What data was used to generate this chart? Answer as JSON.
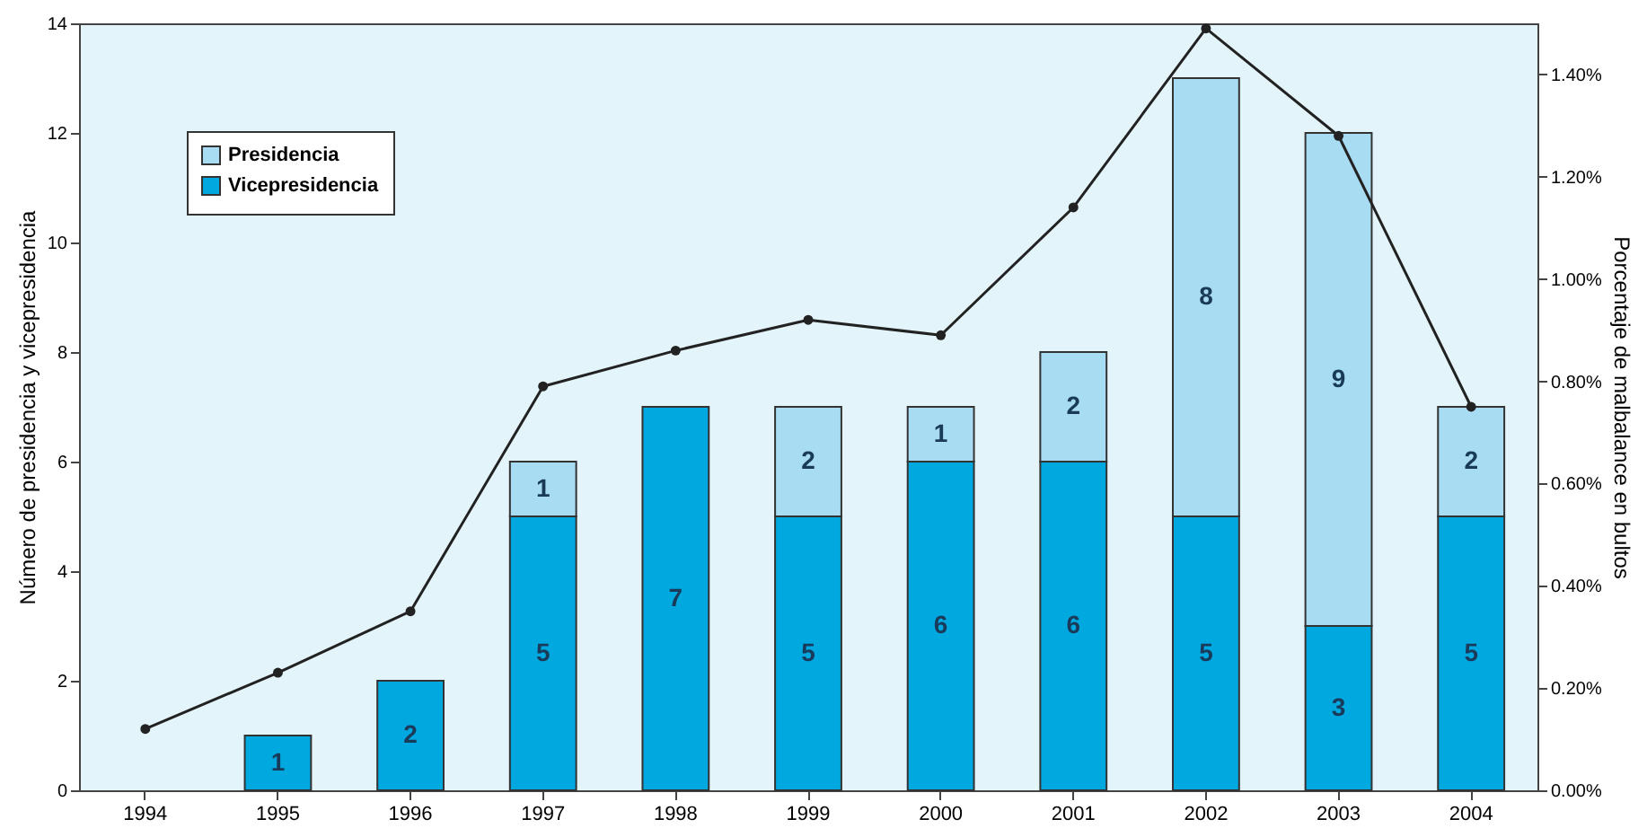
{
  "chart_data": {
    "type": "bar",
    "stacked": true,
    "categories": [
      "1994",
      "1995",
      "1996",
      "1997",
      "1998",
      "1999",
      "2000",
      "2001",
      "2002",
      "2003",
      "2004"
    ],
    "ylabel": "Número de presidencia y vicepresidencia",
    "y2label": "Porcentaje de malbalance en bultos",
    "ylim": [
      0,
      14
    ],
    "yticks": [
      0,
      2,
      4,
      6,
      8,
      10,
      12,
      14
    ],
    "y2lim": [
      0,
      1.5
    ],
    "y2ticks": [
      {
        "value": 0,
        "label": "0.00%"
      },
      {
        "value": 0.2,
        "label": "0.20%"
      },
      {
        "value": 0.4,
        "label": "0.40%"
      },
      {
        "value": 0.6,
        "label": "0.60%"
      },
      {
        "value": 0.8,
        "label": "0.80%"
      },
      {
        "value": 1.0,
        "label": "1.00%"
      },
      {
        "value": 1.2,
        "label": "1.20%"
      },
      {
        "value": 1.4,
        "label": "1.40%"
      }
    ],
    "series": [
      {
        "name": "Vicepresidencia",
        "color": "#00a8e0",
        "values": [
          null,
          1,
          2,
          5,
          7,
          5,
          6,
          6,
          5,
          3,
          5
        ],
        "value_labels": [
          null,
          "1",
          "2",
          "5",
          "7",
          "5",
          "6",
          "6",
          "5",
          "3",
          "5"
        ]
      },
      {
        "name": "Presidencia",
        "color": "#a8dcf2",
        "values": [
          null,
          null,
          null,
          1,
          null,
          2,
          1,
          2,
          8,
          9,
          2
        ],
        "value_labels": [
          null,
          null,
          null,
          "1",
          null,
          "2",
          "1",
          "2",
          "8",
          "9",
          "2"
        ]
      },
      {
        "type": "line",
        "axis": "y2",
        "color": "#222222",
        "marker": "circle",
        "values": [
          0.12,
          0.23,
          0.35,
          0.79,
          0.86,
          0.92,
          0.89,
          1.14,
          1.49,
          1.28,
          0.75
        ]
      }
    ],
    "legend": "top left",
    "grid": false
  }
}
